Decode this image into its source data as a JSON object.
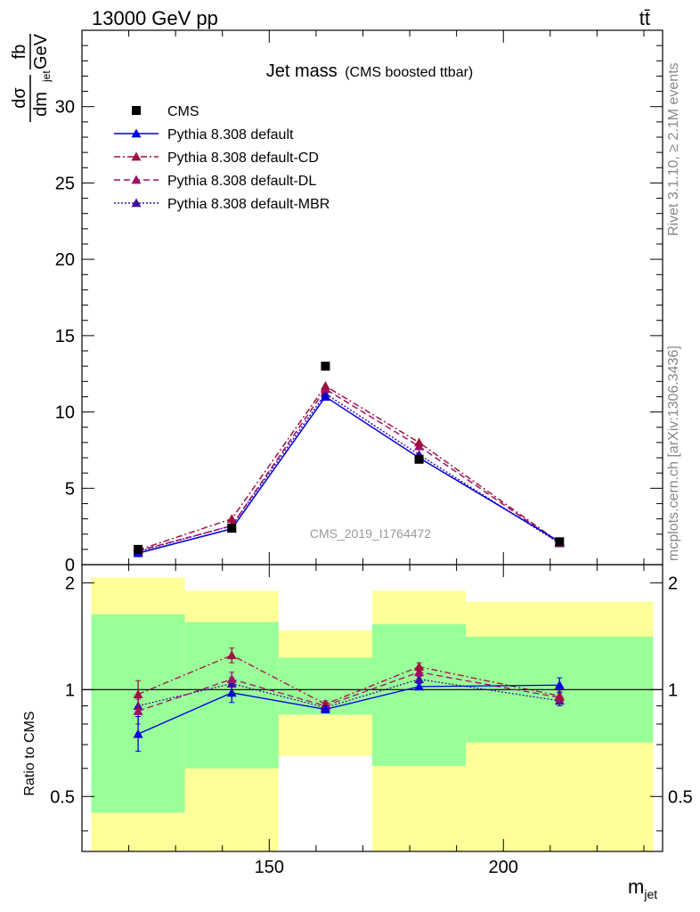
{
  "header": {
    "energy_label": "13000 GeV pp",
    "process_label": "tt̄"
  },
  "side": {
    "rivet_label": "Rivet 3.1.10, ≥ 2.1M events",
    "mcplots_label": "mcplots.cern.ch [arXiv:1306.3436]"
  },
  "chart_data": [
    {
      "type": "line",
      "title": "Jet mass",
      "subtitle": "(CMS boosted ttbar)",
      "watermark": "CMS_2019_I1764472",
      "ylabel": {
        "num1": "dσ",
        "den1": "dm",
        "den1_sub": "jet",
        "num2": "fb",
        "den2": "GeV"
      },
      "xlabel": "m",
      "xlabel_sub": "jet",
      "xlim": [
        110,
        234
      ],
      "ylim": [
        0,
        35
      ],
      "yticks": [
        0,
        5,
        10,
        15,
        20,
        25,
        30
      ],
      "grid": false,
      "legend_position": "top-left",
      "x": [
        122,
        142,
        162,
        182,
        212
      ],
      "series": [
        {
          "name": "CMS",
          "color": "#000000",
          "marker": "square",
          "line": "none",
          "values": [
            1.0,
            2.4,
            13.0,
            6.9,
            1.5
          ]
        },
        {
          "name": "Pythia 8.308 default",
          "color": "#0000dd",
          "marker": "triangle",
          "line": "solid",
          "values": [
            0.75,
            2.35,
            11.0,
            7.0,
            1.5
          ],
          "errors": [
            0.1,
            0.15,
            0.2,
            0.15,
            0.1
          ]
        },
        {
          "name": "Pythia 8.308 default-CD",
          "color": "#a01040",
          "marker": "triangle",
          "line": "dashdot",
          "values": [
            0.95,
            3.0,
            11.7,
            8.0,
            1.45
          ]
        },
        {
          "name": "Pythia 8.308 default-DL",
          "color": "#a0106a",
          "marker": "triangle",
          "line": "dashed",
          "values": [
            0.9,
            2.55,
            11.5,
            7.75,
            1.4
          ]
        },
        {
          "name": "Pythia 8.308 default-MBR",
          "color": "#3a10a0",
          "marker": "triangle",
          "line": "dotted",
          "values": [
            0.85,
            2.55,
            11.2,
            7.2,
            1.4
          ]
        }
      ]
    },
    {
      "type": "line",
      "ylabel": "Ratio to CMS",
      "xlim": [
        110,
        234
      ],
      "ylim": [
        0.35,
        2.25
      ],
      "xticks": [
        150,
        200
      ],
      "yticks": [
        0.5,
        1,
        2
      ],
      "reference_line": 1,
      "bands": [
        {
          "x0": 112,
          "x1": 132,
          "green": [
            0.45,
            1.63
          ],
          "yellow": [
            0.35,
            2.07
          ]
        },
        {
          "x0": 132,
          "x1": 152,
          "green": [
            0.6,
            1.55
          ],
          "yellow": [
            0.35,
            1.9
          ]
        },
        {
          "x0": 152,
          "x1": 172,
          "green": [
            0.85,
            1.23
          ],
          "yellow": [
            0.65,
            1.47
          ]
        },
        {
          "x0": 172,
          "x1": 192,
          "green": [
            0.61,
            1.53
          ],
          "yellow": [
            0.35,
            1.9
          ]
        },
        {
          "x0": 192,
          "x1": 232,
          "green": [
            0.71,
            1.41
          ],
          "yellow": [
            0.35,
            1.77
          ]
        }
      ],
      "x": [
        122,
        142,
        162,
        182,
        212
      ],
      "series": [
        {
          "name": "Pythia 8.308 default",
          "color": "#0000dd",
          "line": "solid",
          "values": [
            0.75,
            0.98,
            0.88,
            1.02,
            1.03
          ],
          "errors": [
            [
              0.67,
              0.84
            ],
            [
              0.92,
              1.04
            ],
            [
              0.86,
              0.9
            ],
            [
              1.0,
              1.04
            ],
            [
              0.98,
              1.08
            ]
          ]
        },
        {
          "name": "Pythia 8.308 default-CD",
          "color": "#a01040",
          "line": "dashdot",
          "values": [
            0.97,
            1.25,
            0.91,
            1.16,
            0.96
          ],
          "errors": [
            [
              0.88,
              1.06
            ],
            [
              1.19,
              1.31
            ],
            [
              0.89,
              0.93
            ],
            [
              1.13,
              1.19
            ],
            [
              0.93,
              0.99
            ]
          ]
        },
        {
          "name": "Pythia 8.308 default-DL",
          "color": "#a0106a",
          "line": "dashed",
          "values": [
            0.87,
            1.07,
            0.9,
            1.12,
            0.95
          ],
          "errors": [
            [
              0.8,
              0.94
            ],
            [
              1.02,
              1.12
            ],
            [
              0.88,
              0.92
            ],
            [
              1.09,
              1.15
            ],
            [
              0.92,
              0.98
            ]
          ]
        },
        {
          "name": "Pythia 8.308 default-MBR",
          "color": "#3a10a0",
          "line": "dotted",
          "values": [
            0.9,
            1.04,
            0.89,
            1.07,
            0.93
          ],
          "errors": [
            [
              0.84,
              0.96
            ],
            [
              1.0,
              1.08
            ],
            [
              0.87,
              0.91
            ],
            [
              1.05,
              1.09
            ],
            [
              0.9,
              0.96
            ]
          ]
        }
      ]
    }
  ]
}
